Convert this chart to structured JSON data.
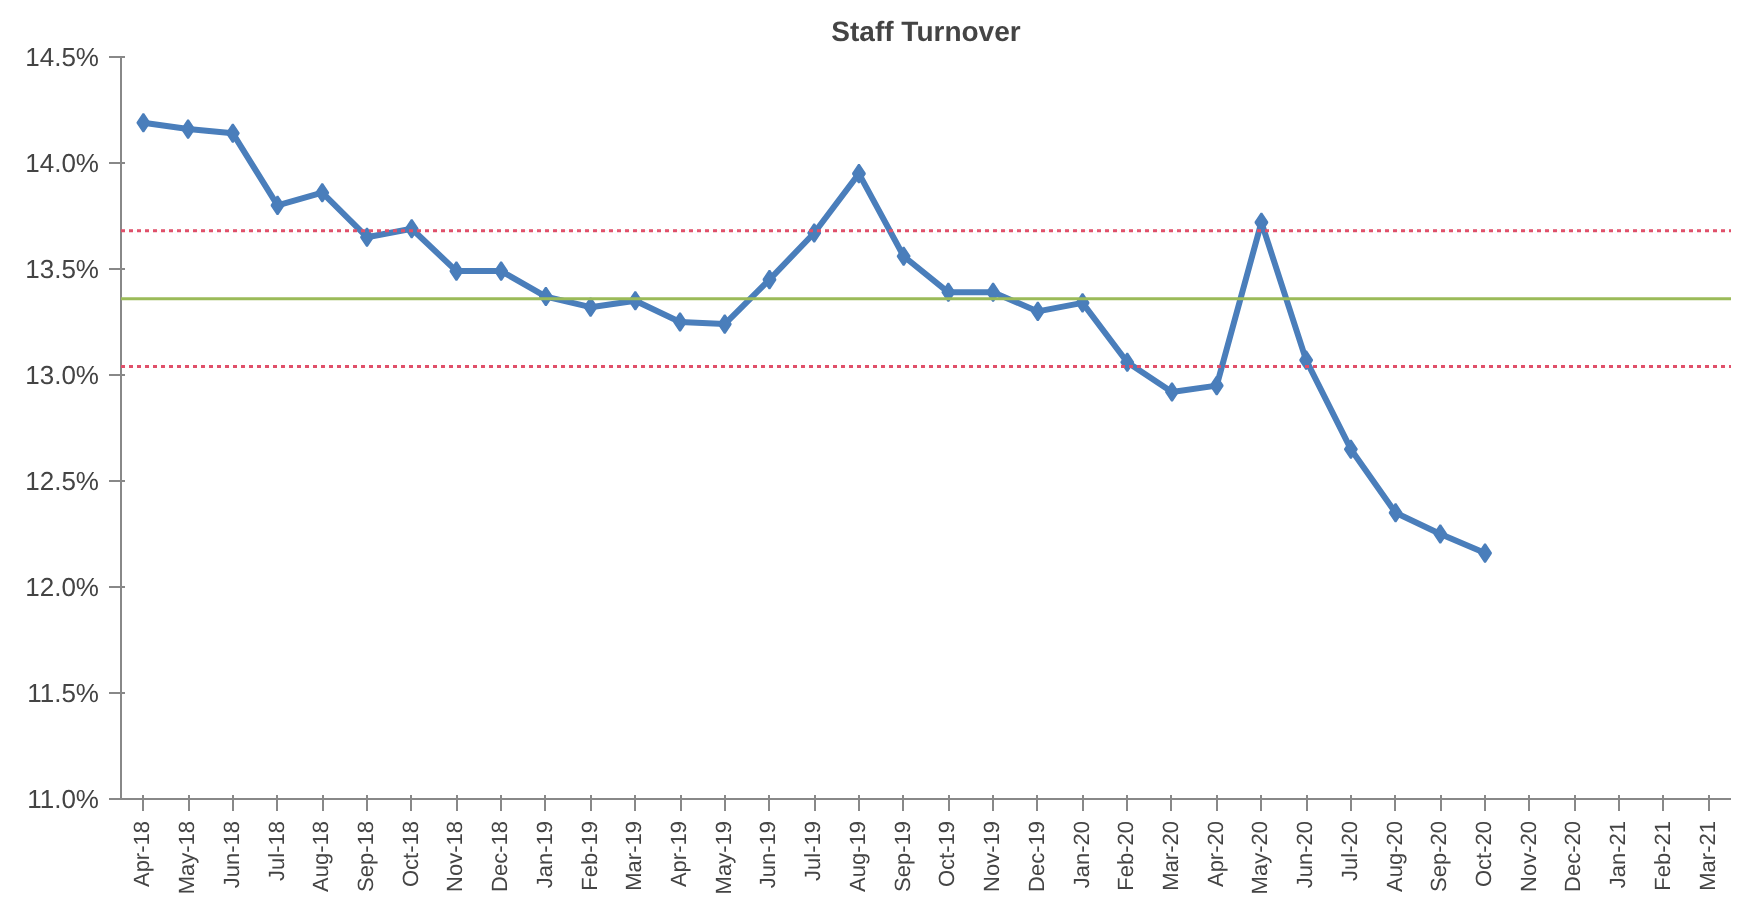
{
  "chart_data": {
    "type": "line",
    "title": "Staff Turnover",
    "categories": [
      "Apr-18",
      "May-18",
      "Jun-18",
      "Jul-18",
      "Aug-18",
      "Sep-18",
      "Oct-18",
      "Nov-18",
      "Dec-18",
      "Jan-19",
      "Feb-19",
      "Mar-19",
      "Apr-19",
      "May-19",
      "Jun-19",
      "Jul-19",
      "Aug-19",
      "Sep-19",
      "Oct-19",
      "Nov-19",
      "Dec-19",
      "Jan-20",
      "Feb-20",
      "Mar-20",
      "Apr-20",
      "May-20",
      "Jun-20",
      "Jul-20",
      "Aug-20",
      "Sep-20",
      "Oct-20",
      "Nov-20",
      "Dec-20",
      "Jan-21",
      "Feb-21",
      "Mar-21"
    ],
    "series": [
      {
        "color": "#4a7ebb",
        "values": [
          14.19,
          14.16,
          14.14,
          13.8,
          13.86,
          13.65,
          13.69,
          13.49,
          13.49,
          13.37,
          13.32,
          13.35,
          13.25,
          13.24,
          13.45,
          13.67,
          13.95,
          13.56,
          13.39,
          13.39,
          13.3,
          13.34,
          13.06,
          12.92,
          12.95,
          13.72,
          13.07,
          12.65,
          12.35,
          12.25,
          12.16,
          null,
          null,
          null,
          null,
          null
        ]
      }
    ],
    "ylim": [
      11.0,
      14.5
    ],
    "yticks": [
      {
        "value": 11.0,
        "label": "11.0%"
      },
      {
        "value": 11.5,
        "label": "11.5%"
      },
      {
        "value": 12.0,
        "label": "12.0%"
      },
      {
        "value": 12.5,
        "label": "12.5%"
      },
      {
        "value": 13.0,
        "label": "13.0%"
      },
      {
        "value": 13.5,
        "label": "13.5%"
      },
      {
        "value": 14.0,
        "label": "14.0%"
      },
      {
        "value": 14.5,
        "label": "14.5%"
      }
    ],
    "ref_lines": [
      {
        "axis": "y",
        "value": 13.68,
        "color": "#e0506a",
        "line_style": "dotted"
      },
      {
        "axis": "y",
        "value": 13.36,
        "color": "#9bbb59",
        "line_style": "solid"
      },
      {
        "axis": "y",
        "value": 13.04,
        "color": "#e0506a",
        "line_style": "dotted"
      }
    ],
    "marker": "diamond",
    "line_style": "solid",
    "grid": false
  }
}
